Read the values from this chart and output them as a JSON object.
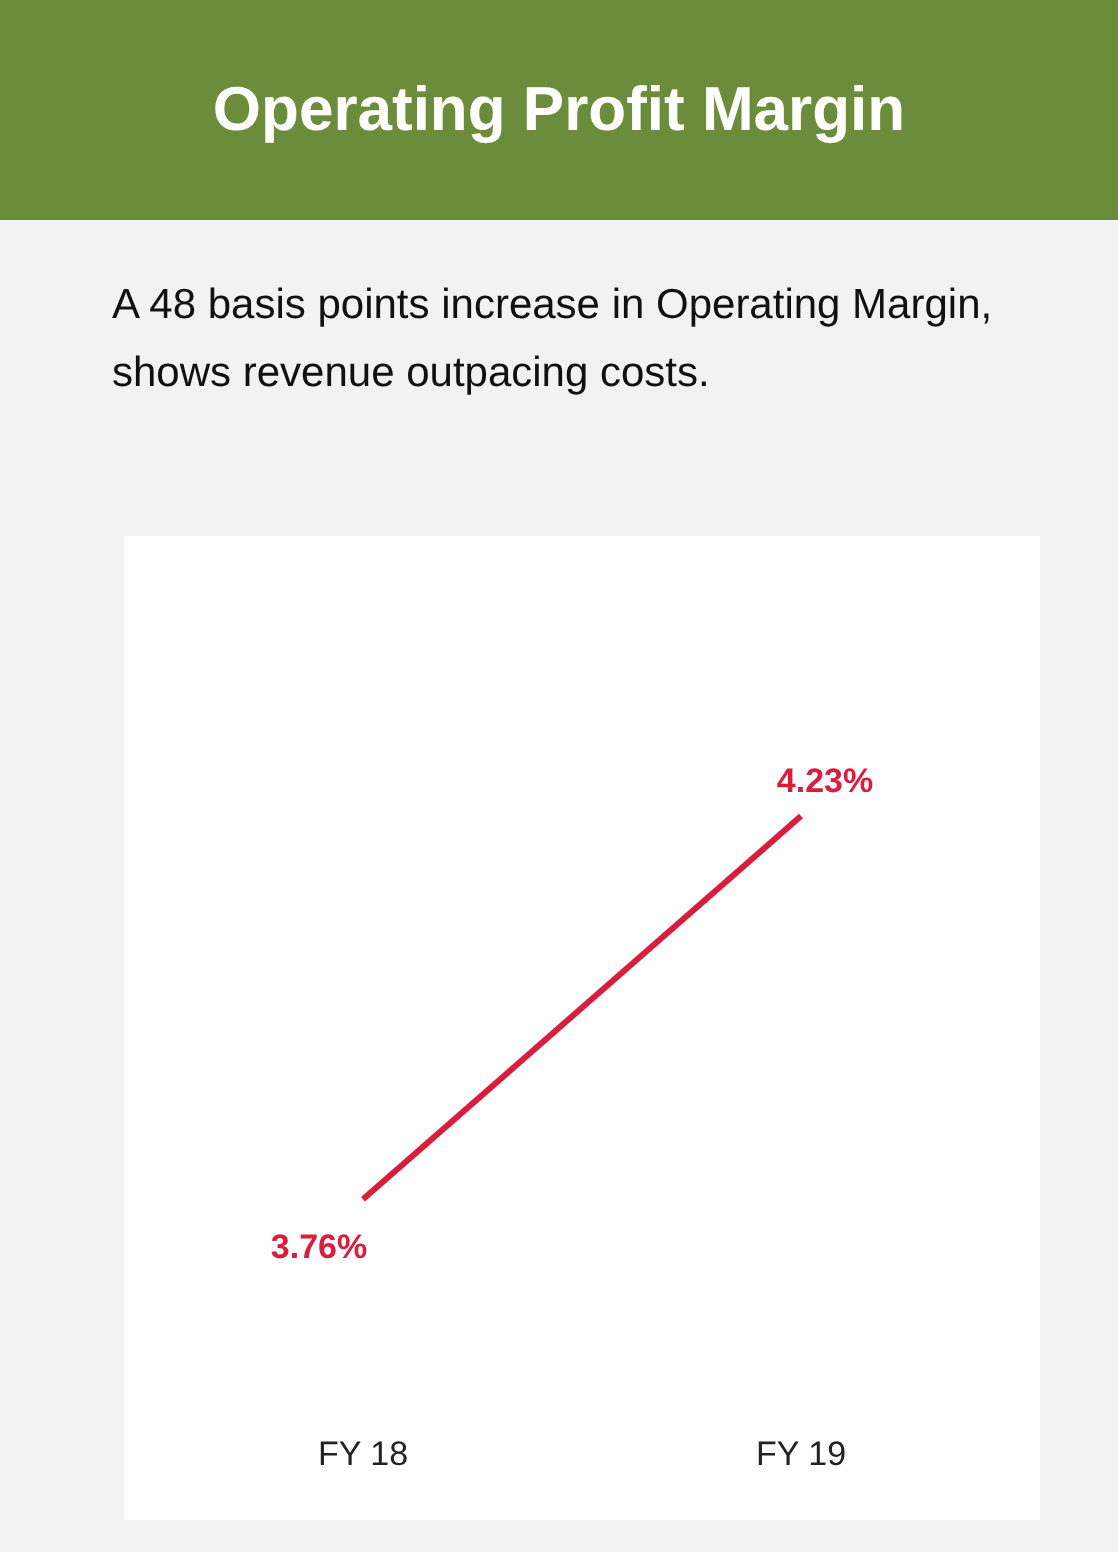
{
  "chart_data": {
    "type": "line",
    "title": "Operating Profit Margin",
    "subtitle": "A 48 basis points increase in Operating Margin, shows revenue outpacing costs.",
    "categories": [
      "FY 18",
      "FY 19"
    ],
    "series": [
      {
        "color": "#d81e3c",
        "values": [
          3.76,
          4.23
        ],
        "value_labels": [
          "3.76%",
          "4.23%"
        ]
      }
    ],
    "tick_labels": "x",
    "grid": false,
    "legend": false,
    "marker": "none",
    "line_style": "solid"
  }
}
